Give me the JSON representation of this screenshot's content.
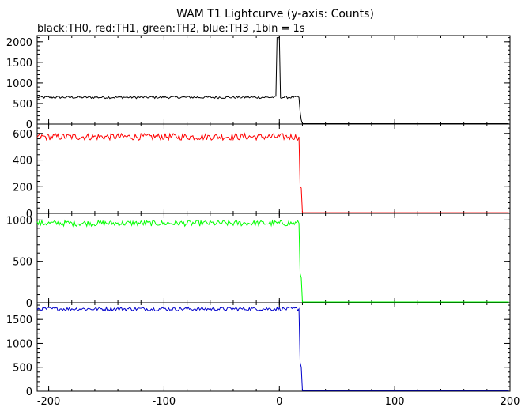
{
  "chart_data": {
    "type": "line",
    "title": "WAM T1 Lightcurve (y-axis: Counts)",
    "subtitle": "black:TH0, red:TH1, green:TH2, blue:TH3 ,1bin = 1s",
    "xlim": [
      -210,
      200
    ],
    "x_ticks": [
      "-200",
      "-100",
      "0",
      "100",
      "200"
    ],
    "x_tick_values": [
      -200,
      -100,
      0,
      100,
      200
    ],
    "grid": false,
    "panels": [
      {
        "series_name": "TH0",
        "color": "#000000",
        "ylim": [
          0,
          2150
        ],
        "y_ticks": [
          "0",
          "500",
          "1000",
          "1500",
          "2000"
        ],
        "y_tick_values": [
          0,
          500,
          1000,
          1500,
          2000
        ],
        "baseline": 650,
        "noise": 30,
        "spike": {
          "x_start": -2,
          "x_end": 0,
          "value": 2100
        },
        "drop_x": [
          17,
          18,
          19,
          20
        ],
        "drop_y": [
          650,
          300,
          100,
          10
        ],
        "post_level": 10
      },
      {
        "series_name": "TH1",
        "color": "#ff0000",
        "ylim": [
          0,
          670
        ],
        "y_ticks": [
          "0",
          "200",
          "400",
          "600"
        ],
        "y_tick_values": [
          0,
          200,
          400,
          600
        ],
        "baseline": 575,
        "noise": 25,
        "spike": null,
        "drop_x": [
          17,
          18,
          19,
          20
        ],
        "drop_y": [
          575,
          200,
          190,
          5
        ],
        "post_level": 5
      },
      {
        "series_name": "TH2",
        "color": "#00ff00",
        "ylim": [
          0,
          1080
        ],
        "y_ticks": [
          "0",
          "500",
          "1000"
        ],
        "y_tick_values": [
          0,
          500,
          1000
        ],
        "baseline": 960,
        "noise": 35,
        "spike": null,
        "drop_x": [
          17,
          18,
          19,
          20
        ],
        "drop_y": [
          960,
          350,
          300,
          10
        ],
        "post_level": 10
      },
      {
        "series_name": "TH3",
        "color": "#0000cc",
        "ylim": [
          0,
          1850
        ],
        "y_ticks": [
          "0",
          "500",
          "1000",
          "1500"
        ],
        "y_tick_values": [
          0,
          500,
          1000,
          1500
        ],
        "baseline": 1720,
        "noise": 40,
        "spike": null,
        "drop_x": [
          17,
          18,
          19,
          20
        ],
        "drop_y": [
          1720,
          600,
          500,
          15
        ],
        "post_level": 15
      }
    ]
  }
}
